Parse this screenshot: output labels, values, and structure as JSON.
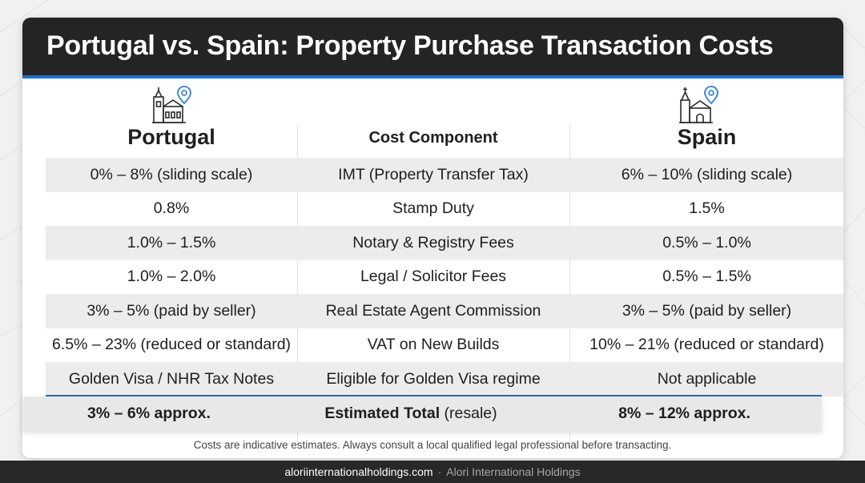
{
  "title": "Portugal vs. Spain: Property Purchase Transaction Costs",
  "columns": {
    "left": {
      "label": "Portugal",
      "icon": "church-location-pin-icon"
    },
    "middle": {
      "label": "Cost Component"
    },
    "right": {
      "label": "Spain",
      "icon": "church-location-pin-icon"
    }
  },
  "rows": [
    {
      "portugal": "0% – 8% (sliding scale)",
      "component": "IMT (Property Transfer Tax)",
      "spain": "6% – 10% (sliding scale)"
    },
    {
      "portugal": "0.8%",
      "component": "Stamp Duty",
      "spain": "1.5%"
    },
    {
      "portugal": "1.0% – 1.5%",
      "component": "Notary & Registry Fees",
      "spain": "0.5% – 1.0%"
    },
    {
      "portugal": "1.0% – 2.0%",
      "component": "Legal / Solicitor Fees",
      "spain": "0.5% – 1.5%"
    },
    {
      "portugal": "3% – 5% (paid by seller)",
      "component": "Real Estate Agent Commission",
      "spain": "3% – 5% (paid by seller)"
    },
    {
      "portugal": "6.5% – 23% (reduced or standard)",
      "component": "VAT on New Builds",
      "spain": "10% – 21% (reduced or standard)"
    },
    {
      "portugal": "Golden Visa / NHR Tax Notes",
      "component": "Eligible for Golden Visa regime",
      "spain": "Not applicable"
    }
  ],
  "total": {
    "portugal": "3% – 6% approx.",
    "component_label": "Estimated Total",
    "component_note": "(resale)",
    "spain": "8% – 12% approx."
  },
  "disclaimer": "Costs are indicative estimates. Always consult a local qualified legal professional before transacting.",
  "footer": {
    "url": "aloriinternationalholdings.com",
    "separator": "·",
    "brand": "Alori International Holdings"
  },
  "colors": {
    "header_bg": "#242424",
    "accent": "#1f6fd6",
    "pin": "#2f7de0",
    "row_shade": "#ececec"
  }
}
